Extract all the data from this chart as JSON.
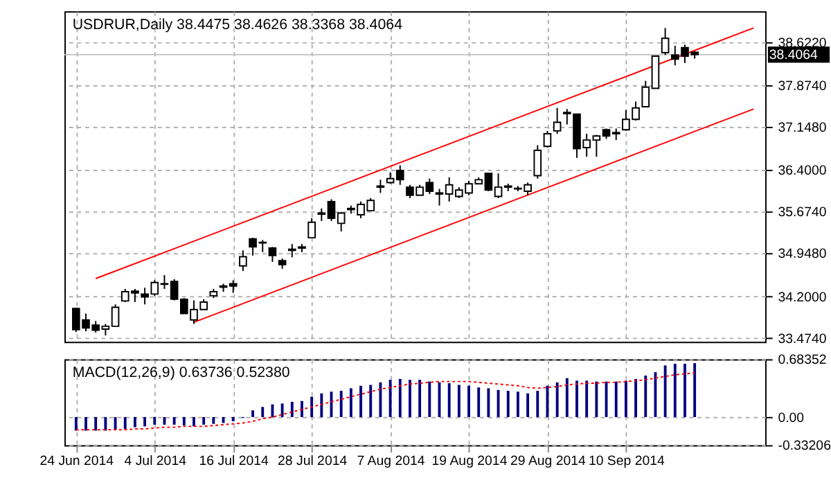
{
  "chart_data": [
    {
      "type": "candlestick",
      "title": "USDRUR,Daily  38.4475 38.4626 38.3368 38.4064",
      "categories": [
        null,
        null,
        null,
        null,
        null,
        null,
        null,
        null,
        null,
        null,
        null,
        null,
        null,
        null,
        null,
        null,
        null,
        null,
        null,
        null,
        null,
        null,
        null,
        null,
        null,
        null,
        null,
        null,
        null,
        null,
        null,
        null,
        null,
        null,
        null,
        null,
        null,
        null,
        null,
        null,
        null,
        null,
        null,
        null,
        null,
        null,
        null,
        null,
        null,
        null,
        null,
        null,
        null,
        null,
        null,
        null,
        null,
        null,
        null,
        null,
        null,
        null,
        null,
        null,
        null,
        null,
        null,
        null,
        null,
        null
      ],
      "series": [
        {
          "type": "line",
          "color": "#ff0000",
          "values": [
            null,
            null,
            34.51,
            null,
            null,
            null,
            null,
            null,
            null,
            null,
            null,
            null,
            null,
            null,
            null,
            null,
            null,
            null,
            null,
            null,
            null,
            null,
            null,
            null,
            null,
            null,
            null,
            null,
            null,
            null,
            null,
            null,
            null,
            null,
            null,
            null,
            null,
            null,
            null,
            null,
            null,
            null,
            null,
            null,
            null,
            null,
            null,
            null,
            null,
            null,
            null,
            null,
            null,
            null,
            null,
            null,
            null,
            null,
            null,
            null,
            null,
            null,
            null,
            null,
            null,
            null,
            null,
            null,
            null,
            38.87
          ]
        },
        {
          "type": "line",
          "color": "#ff0000",
          "values": [
            null,
            null,
            null,
            null,
            null,
            null,
            null,
            null,
            null,
            null,
            null,
            null,
            33.75,
            null,
            null,
            null,
            null,
            null,
            null,
            null,
            null,
            null,
            null,
            null,
            null,
            null,
            null,
            null,
            null,
            null,
            null,
            null,
            null,
            null,
            null,
            null,
            null,
            null,
            null,
            null,
            null,
            null,
            null,
            null,
            null,
            null,
            null,
            null,
            null,
            null,
            null,
            null,
            null,
            null,
            null,
            null,
            null,
            null,
            null,
            null,
            null,
            null,
            null,
            null,
            null,
            null,
            null,
            null,
            null,
            37.46
          ]
        },
        {
          "color": "#000000",
          "ohlc": [
            [
              33.99,
              34.0,
              33.58,
              33.62
            ],
            [
              33.79,
              33.9,
              33.59,
              33.65
            ],
            [
              33.7,
              33.77,
              33.57,
              33.61
            ],
            [
              33.63,
              33.72,
              33.52,
              33.68
            ],
            [
              33.68,
              34.06,
              33.68,
              34.01
            ],
            [
              34.12,
              34.33,
              34.1,
              34.28
            ],
            [
              34.29,
              34.33,
              34.1,
              34.26
            ],
            [
              34.24,
              34.35,
              34.06,
              34.19
            ],
            [
              34.24,
              34.48,
              34.21,
              34.44
            ],
            [
              34.41,
              34.57,
              34.33,
              34.42
            ],
            [
              34.46,
              34.5,
              34.13,
              34.15
            ],
            [
              34.15,
              34.17,
              33.9,
              33.9
            ],
            [
              33.79,
              34.13,
              33.72,
              33.97
            ],
            [
              33.97,
              34.15,
              33.97,
              34.1
            ],
            [
              34.21,
              34.33,
              34.17,
              34.28
            ],
            [
              34.36,
              34.42,
              34.28,
              34.38
            ],
            [
              34.42,
              34.48,
              34.26,
              34.38
            ],
            [
              34.73,
              35.0,
              34.64,
              34.89
            ],
            [
              35.2,
              35.22,
              34.91,
              35.06
            ],
            [
              35.14,
              35.18,
              34.97,
              35.13
            ],
            [
              35.04,
              35.06,
              34.8,
              34.91
            ],
            [
              34.82,
              34.86,
              34.68,
              34.75
            ],
            [
              35.0,
              35.11,
              34.88,
              35.02
            ],
            [
              35.04,
              35.11,
              34.97,
              35.06
            ],
            [
              35.22,
              35.56,
              35.22,
              35.49
            ],
            [
              35.63,
              35.73,
              35.51,
              35.65
            ],
            [
              35.85,
              35.89,
              35.51,
              35.56
            ],
            [
              35.47,
              35.67,
              35.33,
              35.65
            ],
            [
              35.71,
              35.78,
              35.64,
              35.73
            ],
            [
              35.62,
              35.85,
              35.56,
              35.8
            ],
            [
              35.69,
              35.91,
              35.69,
              35.87
            ],
            [
              36.1,
              36.23,
              36.0,
              36.12
            ],
            [
              36.18,
              36.36,
              36.16,
              36.25
            ],
            [
              36.39,
              36.48,
              36.14,
              36.23
            ],
            [
              36.1,
              36.14,
              35.91,
              35.96
            ],
            [
              35.96,
              36.14,
              35.96,
              36.1
            ],
            [
              36.18,
              36.25,
              35.98,
              36.03
            ],
            [
              36.0,
              36.07,
              35.78,
              35.98
            ],
            [
              35.98,
              36.27,
              35.85,
              36.14
            ],
            [
              35.94,
              36.1,
              35.91,
              36.05
            ],
            [
              36.0,
              36.21,
              35.96,
              36.16
            ],
            [
              36.16,
              36.27,
              36.16,
              36.23
            ],
            [
              36.34,
              36.34,
              36.03,
              36.05
            ],
            [
              35.94,
              36.34,
              35.91,
              36.1
            ],
            [
              36.1,
              36.16,
              36.03,
              36.12
            ],
            [
              36.07,
              36.12,
              36.03,
              36.08
            ],
            [
              36.03,
              36.18,
              35.96,
              36.14
            ],
            [
              36.3,
              36.83,
              36.25,
              36.74
            ],
            [
              36.81,
              37.08,
              36.79,
              37.03
            ],
            [
              37.08,
              37.48,
              37.03,
              37.23
            ],
            [
              37.38,
              37.46,
              37.19,
              37.4
            ],
            [
              37.37,
              37.37,
              36.61,
              36.77
            ],
            [
              36.79,
              37.03,
              36.63,
              36.92
            ],
            [
              36.92,
              37.01,
              36.63,
              36.99
            ],
            [
              37.1,
              37.12,
              36.94,
              36.99
            ],
            [
              37.03,
              37.12,
              36.92,
              37.05
            ],
            [
              37.1,
              37.44,
              37.08,
              37.28
            ],
            [
              37.28,
              37.59,
              37.26,
              37.48
            ],
            [
              37.5,
              37.95,
              37.5,
              37.84
            ],
            [
              37.82,
              38.38,
              37.82,
              38.38
            ],
            [
              38.44,
              38.87,
              38.4,
              38.69
            ],
            [
              38.4,
              38.56,
              38.22,
              38.33
            ],
            [
              38.53,
              38.58,
              38.26,
              38.38
            ],
            [
              38.4475,
              38.4626,
              38.3368,
              38.4064
            ],
            null,
            null,
            null,
            null,
            null,
            null
          ]
        }
      ],
      "ylim": [
        33.41,
        39.16
      ],
      "yticks": [
        {
          "value": 38.622,
          "label": "38.6220"
        },
        {
          "value": 37.874,
          "label": "37.8740"
        },
        {
          "value": 37.148,
          "label": "37.1480"
        },
        {
          "value": 36.4,
          "label": "36.4000"
        },
        {
          "value": 35.674,
          "label": "35.6740"
        },
        {
          "value": 34.948,
          "label": "34.9480"
        },
        {
          "value": 34.2,
          "label": "34.2000"
        },
        {
          "value": 33.474,
          "label": "33.4740"
        }
      ],
      "ref_lines": [
        {
          "axis": "y",
          "value": 38.4064,
          "label": "38.4064",
          "color": "#c0c0c0"
        }
      ],
      "grid": true,
      "tick_labels": "y"
    },
    {
      "type": "bar",
      "title": "MACD(12,26,9) 0.63736 0.52380",
      "categories": [
        "24 Jun 2014",
        null,
        null,
        null,
        null,
        null,
        null,
        null,
        "4 Jul 2014",
        null,
        null,
        null,
        null,
        null,
        null,
        null,
        "16 Jul 2014",
        null,
        null,
        null,
        null,
        null,
        null,
        null,
        "28 Jul 2014",
        null,
        null,
        null,
        null,
        null,
        null,
        null,
        "7 Aug 2014",
        null,
        null,
        null,
        null,
        null,
        null,
        null,
        "19 Aug 2014",
        null,
        null,
        null,
        null,
        null,
        null,
        null,
        "29 Aug 2014",
        null,
        null,
        null,
        null,
        null,
        null,
        null,
        "10 Sep 2014",
        null,
        null,
        null,
        null,
        null,
        null,
        null,
        null,
        null,
        null,
        null,
        null,
        null
      ],
      "series": [
        {
          "color": "#000080",
          "values": [
            -0.16,
            -0.16,
            -0.16,
            -0.16,
            -0.15,
            -0.14,
            -0.12,
            -0.11,
            -0.09,
            -0.09,
            -0.09,
            -0.1,
            -0.11,
            -0.09,
            -0.08,
            -0.07,
            -0.05,
            -0.01,
            0.08,
            0.12,
            0.15,
            0.16,
            0.18,
            0.19,
            0.24,
            0.28,
            0.3,
            0.31,
            0.34,
            0.37,
            0.38,
            0.41,
            0.44,
            0.45,
            0.44,
            0.44,
            0.42,
            0.41,
            0.4,
            0.38,
            0.37,
            0.35,
            0.34,
            0.32,
            0.31,
            0.3,
            0.28,
            0.31,
            0.37,
            0.41,
            0.46,
            0.43,
            0.43,
            0.42,
            0.42,
            0.42,
            0.43,
            0.45,
            0.49,
            0.53,
            0.61,
            0.63,
            0.63,
            0.63736,
            null,
            null,
            null,
            null,
            null,
            null
          ]
        },
        {
          "type": "line",
          "color": "#ff0000",
          "line_style": "dotted",
          "values": [
            -0.15,
            -0.15,
            -0.15,
            -0.15,
            -0.15,
            -0.15,
            -0.14,
            -0.14,
            -0.13,
            -0.12,
            -0.12,
            -0.11,
            -0.11,
            -0.11,
            -0.1,
            -0.09,
            -0.08,
            -0.07,
            -0.05,
            -0.02,
            0.0,
            0.03,
            0.06,
            0.09,
            0.12,
            0.15,
            0.18,
            0.21,
            0.24,
            0.27,
            0.3,
            0.33,
            0.35,
            0.37,
            0.39,
            0.4,
            0.41,
            0.42,
            0.42,
            0.42,
            0.42,
            0.41,
            0.4,
            0.39,
            0.38,
            0.37,
            0.35,
            0.34,
            0.35,
            0.36,
            0.38,
            0.39,
            0.4,
            0.4,
            0.41,
            0.41,
            0.42,
            0.43,
            0.44,
            0.46,
            0.48,
            0.5,
            0.51,
            0.5238,
            null,
            null,
            null,
            null,
            null,
            null
          ]
        }
      ],
      "ylim": [
        -0.33206,
        0.68352
      ],
      "yticks": [
        0.68352,
        {
          "value": 0,
          "label": "0.00"
        },
        -0.33206
      ],
      "grid": true
    }
  ]
}
